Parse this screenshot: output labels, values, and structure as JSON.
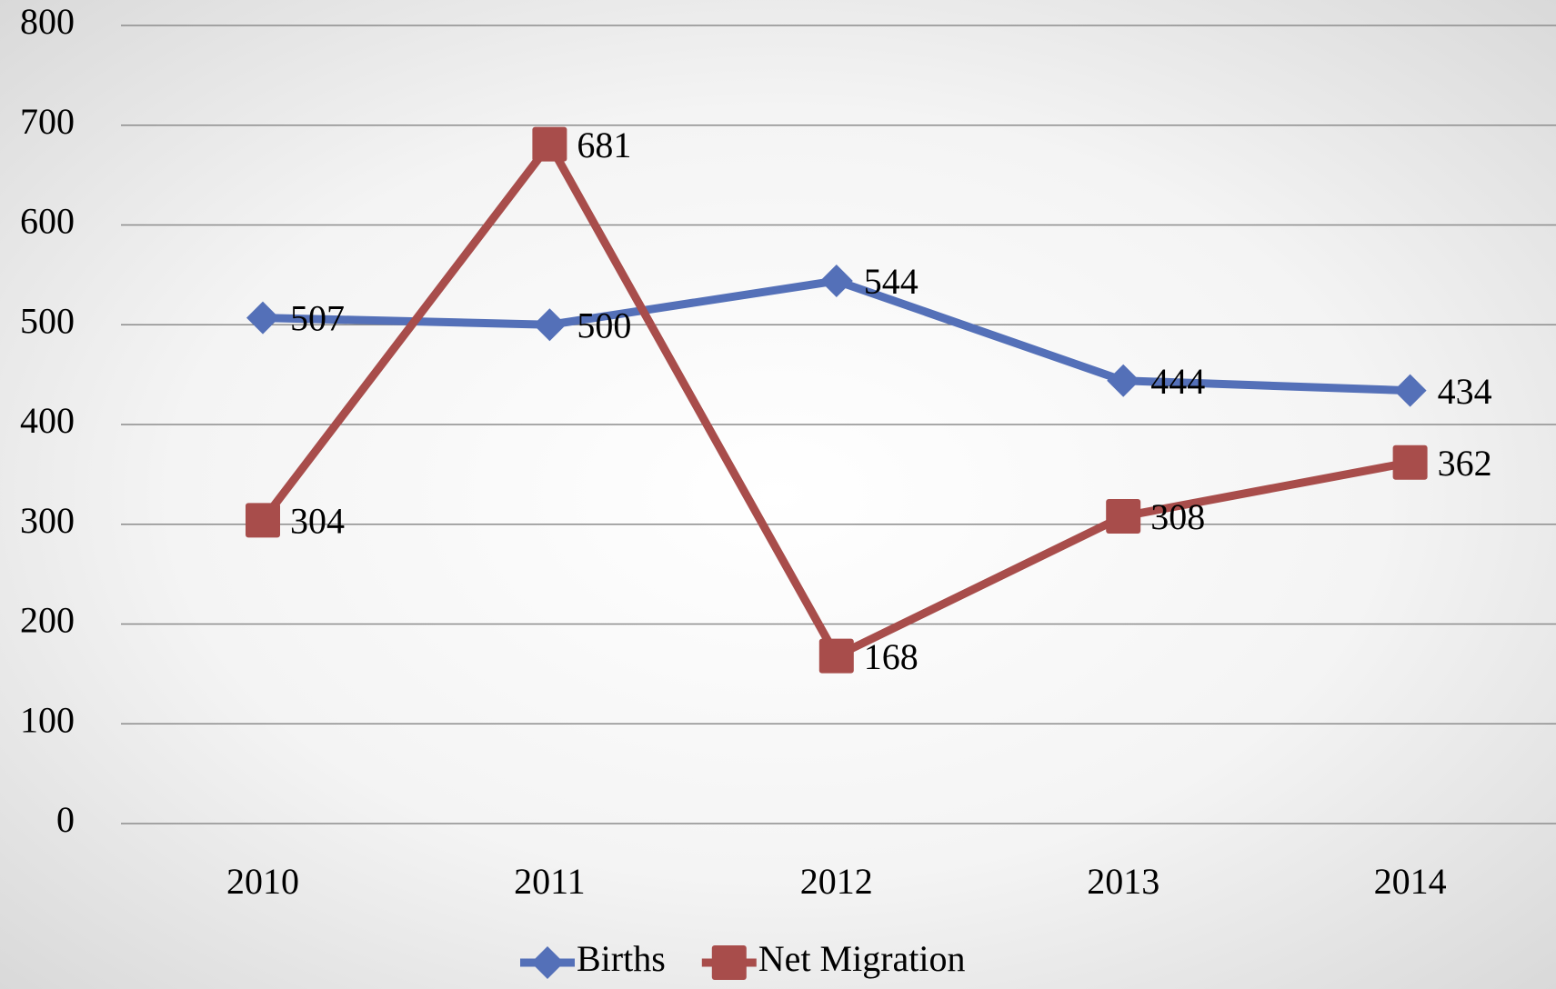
{
  "chart_data": {
    "type": "line",
    "categories": [
      "2010",
      "2011",
      "2012",
      "2013",
      "2014"
    ],
    "series": [
      {
        "name": "Births",
        "color": "#5470b8",
        "marker": "diamond",
        "values": [
          507,
          500,
          544,
          444,
          434
        ]
      },
      {
        "name": "Net Migration",
        "color": "#a84d4b",
        "marker": "square",
        "values": [
          304,
          681,
          168,
          308,
          362
        ]
      }
    ],
    "ylim": [
      0,
      800
    ],
    "yticks": [
      0,
      100,
      200,
      300,
      400,
      500,
      600,
      700,
      800
    ],
    "grid": true,
    "legend": "bottom"
  }
}
